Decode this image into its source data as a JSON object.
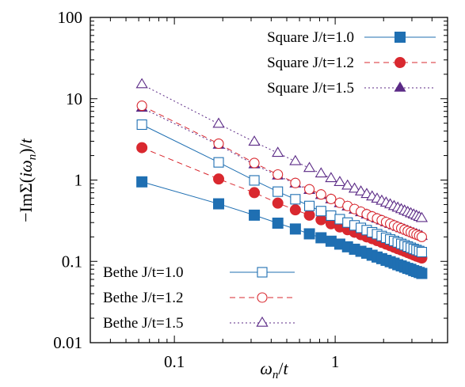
{
  "chart_data": {
    "type": "scatter",
    "xscale": "log",
    "yscale": "log",
    "xlim": [
      0.03,
      5
    ],
    "ylim": [
      0.01,
      100
    ],
    "xticks": [
      {
        "value": 0.1,
        "label": "0.1"
      },
      {
        "value": 1,
        "label": "1"
      }
    ],
    "yticks": [
      {
        "value": 0.01,
        "label": "0.01"
      },
      {
        "value": 0.1,
        "label": "0.1"
      },
      {
        "value": 1,
        "label": "1"
      },
      {
        "value": 10,
        "label": "10"
      },
      {
        "value": 100,
        "label": "100"
      }
    ],
    "xlabel": "ωn/t",
    "ylabel": "−ImΣ(iωn)/t",
    "grid": false,
    "x": [
      0.0628,
      0.1885,
      0.3142,
      0.4398,
      0.5655,
      0.6912,
      0.8168,
      0.9425,
      1.0681,
      1.1938,
      1.3195,
      1.4451,
      1.5708,
      1.6965,
      1.8221,
      1.9478,
      2.0735,
      2.1991,
      2.3248,
      2.4504,
      2.5761,
      2.7018,
      2.8274,
      2.9531,
      3.0788,
      3.2044,
      3.3301,
      3.4558
    ],
    "series": [
      {
        "name": "Square J/t=1.0",
        "color": "#1f6fb2",
        "marker": "square",
        "filled": true,
        "line": "solid",
        "values": [
          0.95,
          0.51,
          0.37,
          0.295,
          0.25,
          0.218,
          0.195,
          0.177,
          0.163,
          0.151,
          0.141,
          0.133,
          0.126,
          0.119,
          0.113,
          0.108,
          0.103,
          0.099,
          0.095,
          0.091,
          0.088,
          0.085,
          0.082,
          0.08,
          0.077,
          0.075,
          0.073,
          0.071
        ]
      },
      {
        "name": "Square J/t=1.2",
        "color": "#d9282f",
        "marker": "circle",
        "filled": true,
        "line": "dashed",
        "values": [
          2.5,
          1.03,
          0.7,
          0.52,
          0.43,
          0.37,
          0.325,
          0.29,
          0.265,
          0.245,
          0.228,
          0.213,
          0.2,
          0.19,
          0.18,
          0.171,
          0.163,
          0.156,
          0.149,
          0.143,
          0.138,
          0.133,
          0.128,
          0.124,
          0.12,
          0.116,
          0.113,
          0.11
        ]
      },
      {
        "name": "Square J/t=1.5",
        "color": "#5b2a86",
        "marker": "triangle",
        "filled": true,
        "line": "dotted",
        "values": [
          7.7,
          2.7,
          1.55,
          1.13,
          0.9,
          0.75,
          0.65,
          0.575,
          0.515,
          0.47,
          0.43,
          0.4,
          0.375,
          0.352,
          0.333,
          0.316,
          0.3,
          0.287,
          0.275,
          0.264,
          0.254,
          0.245,
          0.237,
          0.229,
          0.222,
          0.216,
          0.21,
          0.204
        ]
      },
      {
        "name": "Bethe J/t=1.0",
        "color": "#1f6fb2",
        "marker": "square",
        "filled": false,
        "line": "solid",
        "values": [
          4.8,
          1.65,
          0.99,
          0.72,
          0.58,
          0.48,
          0.415,
          0.365,
          0.33,
          0.3,
          0.277,
          0.258,
          0.242,
          0.228,
          0.216,
          0.205,
          0.195,
          0.186,
          0.178,
          0.171,
          0.164,
          0.158,
          0.152,
          0.147,
          0.142,
          0.138,
          0.134,
          0.13
        ]
      },
      {
        "name": "Bethe J/t=1.2",
        "color": "#d9282f",
        "marker": "circle",
        "filled": false,
        "line": "dashed",
        "values": [
          8.2,
          2.8,
          1.62,
          1.17,
          0.92,
          0.77,
          0.665,
          0.585,
          0.525,
          0.48,
          0.44,
          0.408,
          0.38,
          0.357,
          0.337,
          0.32,
          0.304,
          0.29,
          0.277,
          0.265,
          0.255,
          0.245,
          0.236,
          0.228,
          0.22,
          0.213,
          0.207,
          0.2
        ]
      },
      {
        "name": "Bethe J/t=1.5",
        "color": "#5b2a86",
        "marker": "triangle",
        "filled": false,
        "line": "dotted",
        "values": [
          15,
          4.9,
          2.95,
          2.15,
          1.7,
          1.4,
          1.2,
          1.05,
          0.94,
          0.85,
          0.78,
          0.72,
          0.67,
          0.625,
          0.587,
          0.554,
          0.525,
          0.5,
          0.476,
          0.455,
          0.436,
          0.419,
          0.403,
          0.388,
          0.375,
          0.362,
          0.35,
          0.339
        ]
      }
    ],
    "legends": [
      {
        "placement": "top-right",
        "entries": [
          "Square J/t=1.0",
          "Square J/t=1.2",
          "Square J/t=1.5"
        ]
      },
      {
        "placement": "bottom-left",
        "entries": [
          "Bethe J/t=1.0",
          "Bethe J/t=1.2",
          "Bethe J/t=1.5"
        ]
      }
    ]
  }
}
